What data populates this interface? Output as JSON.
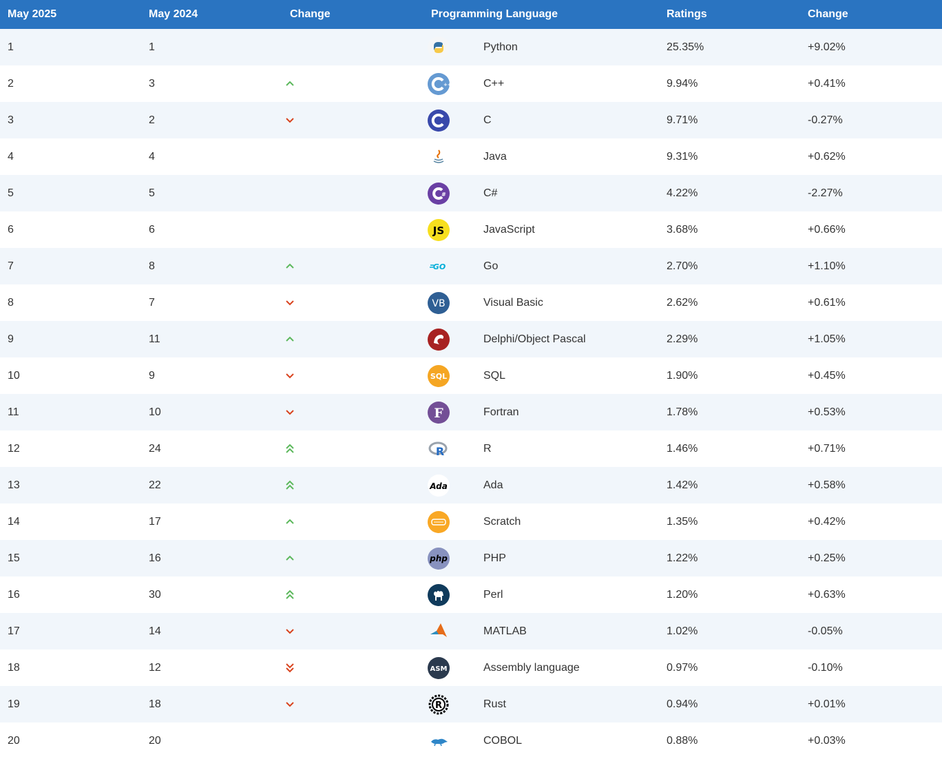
{
  "headers": {
    "current": "May 2025",
    "previous": "May 2024",
    "change": "Change",
    "language": "Programming Language",
    "ratings": "Ratings",
    "ratings_change": "Change"
  },
  "colors": {
    "header_bg": "#2a74c1",
    "row_alt": "#f1f6fb",
    "up": "#5cb85c",
    "down": "#d9431e"
  },
  "chart_data": {
    "type": "table",
    "columns": [
      "May 2025",
      "May 2024",
      "Change",
      "Programming Language",
      "Ratings",
      "Change"
    ],
    "rows": [
      {
        "current": "1",
        "previous": "1",
        "trend": "none",
        "language": "Python",
        "icon": "python-icon",
        "rating": "25.35%",
        "change": "+9.02%"
      },
      {
        "current": "2",
        "previous": "3",
        "trend": "up",
        "language": "C++",
        "icon": "cpp-icon",
        "rating": "9.94%",
        "change": "+0.41%"
      },
      {
        "current": "3",
        "previous": "2",
        "trend": "down",
        "language": "C",
        "icon": "c-icon",
        "rating": "9.71%",
        "change": "-0.27%"
      },
      {
        "current": "4",
        "previous": "4",
        "trend": "none",
        "language": "Java",
        "icon": "java-icon",
        "rating": "9.31%",
        "change": "+0.62%"
      },
      {
        "current": "5",
        "previous": "5",
        "trend": "none",
        "language": "C#",
        "icon": "csharp-icon",
        "rating": "4.22%",
        "change": "-2.27%"
      },
      {
        "current": "6",
        "previous": "6",
        "trend": "none",
        "language": "JavaScript",
        "icon": "javascript-icon",
        "rating": "3.68%",
        "change": "+0.66%"
      },
      {
        "current": "7",
        "previous": "8",
        "trend": "up",
        "language": "Go",
        "icon": "go-icon",
        "rating": "2.70%",
        "change": "+1.10%"
      },
      {
        "current": "8",
        "previous": "7",
        "trend": "down",
        "language": "Visual Basic",
        "icon": "visual-basic-icon",
        "rating": "2.62%",
        "change": "+0.61%"
      },
      {
        "current": "9",
        "previous": "11",
        "trend": "up",
        "language": "Delphi/Object Pascal",
        "icon": "delphi-icon",
        "rating": "2.29%",
        "change": "+1.05%"
      },
      {
        "current": "10",
        "previous": "9",
        "trend": "down",
        "language": "SQL",
        "icon": "sql-icon",
        "rating": "1.90%",
        "change": "+0.45%"
      },
      {
        "current": "11",
        "previous": "10",
        "trend": "down",
        "language": "Fortran",
        "icon": "fortran-icon",
        "rating": "1.78%",
        "change": "+0.53%"
      },
      {
        "current": "12",
        "previous": "24",
        "trend": "up2",
        "language": "R",
        "icon": "r-icon",
        "rating": "1.46%",
        "change": "+0.71%"
      },
      {
        "current": "13",
        "previous": "22",
        "trend": "up2",
        "language": "Ada",
        "icon": "ada-icon",
        "rating": "1.42%",
        "change": "+0.58%"
      },
      {
        "current": "14",
        "previous": "17",
        "trend": "up",
        "language": "Scratch",
        "icon": "scratch-icon",
        "rating": "1.35%",
        "change": "+0.42%"
      },
      {
        "current": "15",
        "previous": "16",
        "trend": "up",
        "language": "PHP",
        "icon": "php-icon",
        "rating": "1.22%",
        "change": "+0.25%"
      },
      {
        "current": "16",
        "previous": "30",
        "trend": "up2",
        "language": "Perl",
        "icon": "perl-icon",
        "rating": "1.20%",
        "change": "+0.63%"
      },
      {
        "current": "17",
        "previous": "14",
        "trend": "down",
        "language": "MATLAB",
        "icon": "matlab-icon",
        "rating": "1.02%",
        "change": "-0.05%"
      },
      {
        "current": "18",
        "previous": "12",
        "trend": "down2",
        "language": "Assembly language",
        "icon": "assembly-icon",
        "rating": "0.97%",
        "change": "-0.10%"
      },
      {
        "current": "19",
        "previous": "18",
        "trend": "down",
        "language": "Rust",
        "icon": "rust-icon",
        "rating": "0.94%",
        "change": "+0.01%"
      },
      {
        "current": "20",
        "previous": "20",
        "trend": "none",
        "language": "COBOL",
        "icon": "cobol-icon",
        "rating": "0.88%",
        "change": "+0.03%"
      }
    ]
  }
}
